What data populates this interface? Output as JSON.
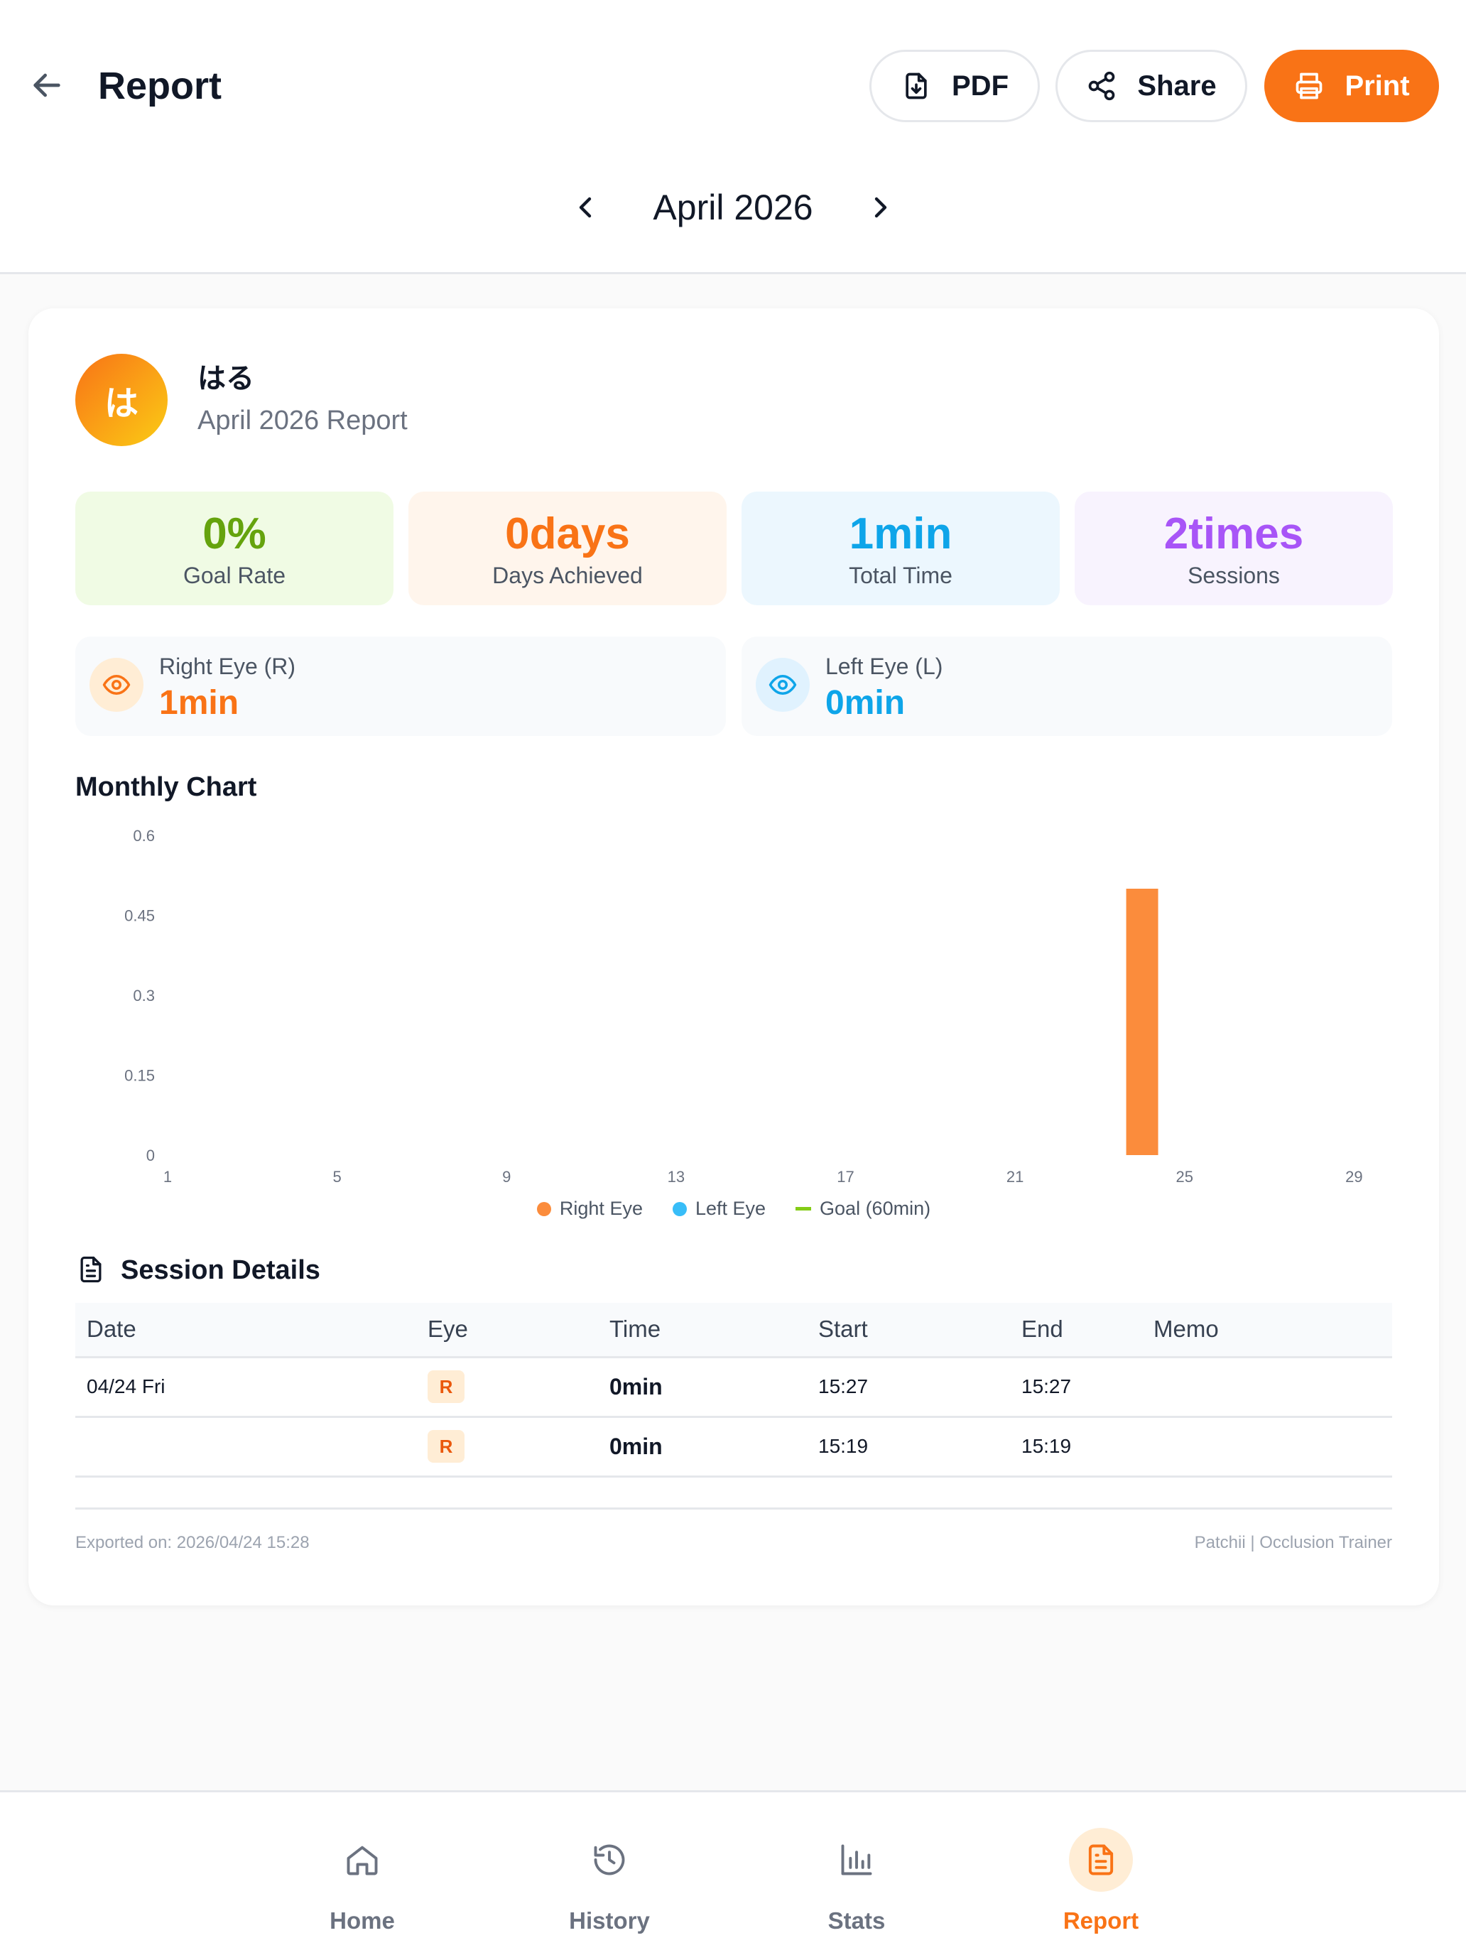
{
  "header": {
    "title": "Report",
    "pdf_label": "PDF",
    "share_label": "Share",
    "print_label": "Print"
  },
  "month_nav": {
    "label": "April 2026"
  },
  "profile": {
    "avatar_initial": "は",
    "name": "はる",
    "subtitle": "April 2026 Report"
  },
  "stats": [
    {
      "value": "0%",
      "label": "Goal Rate",
      "color": "#65a30d",
      "bg": "#f0fbe4"
    },
    {
      "value": "0days",
      "label": "Days Achieved",
      "color": "#f97316",
      "bg": "#fff5ec"
    },
    {
      "value": "1min",
      "label": "Total Time",
      "color": "#0ea5e9",
      "bg": "#ecf7fe"
    },
    {
      "value": "2times",
      "label": "Sessions",
      "color": "#a855f7",
      "bg": "#f8f3fe"
    }
  ],
  "eyes": {
    "right": {
      "label": "Right Eye (R)",
      "value": "1min",
      "color": "#f97316",
      "icon_bg": "#ffedd5",
      "icon": "eye-icon"
    },
    "left": {
      "label": "Left Eye (L)",
      "value": "0min",
      "color": "#0ea5e9",
      "icon_bg": "#e0f2fe",
      "icon": "eye-icon"
    }
  },
  "chart_section": {
    "title": "Monthly Chart"
  },
  "chart_data": {
    "type": "bar",
    "x_ticks": [
      "1",
      "5",
      "9",
      "13",
      "17",
      "21",
      "25",
      "29"
    ],
    "y_ticks": [
      "0",
      "0.15",
      "0.3",
      "0.45",
      "0.6"
    ],
    "ylim": [
      0,
      0.6
    ],
    "xlim": [
      1,
      30
    ],
    "series": [
      {
        "name": "Right Eye",
        "color": "#fb8c3c",
        "points": [
          {
            "x": 24,
            "y": 0.5
          }
        ]
      },
      {
        "name": "Left Eye",
        "color": "#38bdf8",
        "points": []
      }
    ],
    "goal": {
      "name": "Goal (60min)",
      "color": "#84cc16"
    },
    "grid": false,
    "legend_position": "bottom"
  },
  "session_section": {
    "title": "Session Details"
  },
  "table": {
    "headers": [
      "Date",
      "Eye",
      "Time",
      "Start",
      "End",
      "Memo"
    ],
    "rows": [
      {
        "date": "04/24 Fri",
        "eye": "R",
        "time": "0min",
        "start": "15:27",
        "end": "15:27",
        "memo": ""
      },
      {
        "date": "",
        "eye": "R",
        "time": "0min",
        "start": "15:19",
        "end": "15:19",
        "memo": ""
      }
    ]
  },
  "footer": {
    "exported": "Exported on: 2026/04/24 15:28",
    "brand": "Patchii | Occlusion Trainer"
  },
  "bottom_nav": {
    "items": [
      {
        "label": "Home",
        "icon": "home-icon"
      },
      {
        "label": "History",
        "icon": "history-icon"
      },
      {
        "label": "Stats",
        "icon": "bar-chart-icon"
      },
      {
        "label": "Report",
        "icon": "document-icon",
        "active": true
      }
    ]
  },
  "colors": {
    "accent": "#f97316"
  }
}
